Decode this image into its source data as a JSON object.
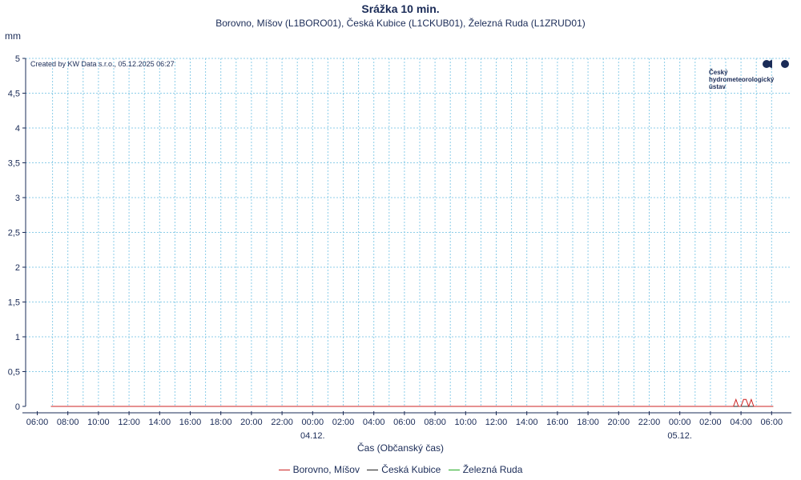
{
  "header": {
    "title": "Srážka 10 min.",
    "subtitle": "Borovno, Míšov (L1BORO01), Česká Kubice (L1CKUB01), Železná Ruda (L1ZRUD01)",
    "unit": "mm",
    "created": "Created by KW Data s.r.o., 05.12.2025 06:27"
  },
  "logo": {
    "line1": "Český",
    "line2": "hydrometeorologický",
    "line3": "ústav",
    "color": "#1a2b57"
  },
  "chart_data": {
    "type": "line",
    "title": "Srážka 10 min.",
    "xlabel": "Čas (Občanský čas)",
    "ylabel": "mm",
    "x_range_hours": [
      0,
      48.2
    ],
    "ylim": [
      0,
      5
    ],
    "y_ticks": [
      "0",
      "0,5",
      "1",
      "1,5",
      "2",
      "2,5",
      "3",
      "3,5",
      "4",
      "4,5",
      "5"
    ],
    "x_ticks": [
      "06:00",
      "08:00",
      "10:00",
      "12:00",
      "14:00",
      "16:00",
      "18:00",
      "20:00",
      "22:00",
      "00:00",
      "02:00",
      "04:00",
      "06:00",
      "08:00",
      "10:00",
      "12:00",
      "14:00",
      "16:00",
      "18:00",
      "20:00",
      "22:00",
      "00:00",
      "02:00",
      "04:00",
      "06:00"
    ],
    "date_labels": [
      {
        "label": "04.12.",
        "tick_index": 9
      },
      {
        "label": "05.12.",
        "tick_index": 21
      }
    ],
    "grid": true,
    "legend_position": "bottom",
    "series": [
      {
        "name": "Borovno, Míšov",
        "color": "#cc2222",
        "points": [
          [
            0.9,
            0
          ],
          [
            45.5,
            0
          ],
          [
            45.67,
            0.1
          ],
          [
            45.83,
            0
          ],
          [
            46.0,
            0
          ],
          [
            46.17,
            0.1
          ],
          [
            46.33,
            0.1
          ],
          [
            46.5,
            0
          ],
          [
            46.67,
            0.1
          ],
          [
            46.83,
            0
          ],
          [
            48.1,
            0
          ]
        ]
      },
      {
        "name": "Česká Kubice",
        "color": "#222222",
        "points": [
          [
            0.9,
            0
          ],
          [
            48.1,
            0
          ]
        ]
      },
      {
        "name": "Železná Ruda",
        "color": "#22aa22",
        "points": [
          [
            0.9,
            0
          ],
          [
            48.1,
            0
          ]
        ]
      }
    ]
  },
  "legend": [
    {
      "label": "Borovno, Míšov",
      "color": "#cc2222"
    },
    {
      "label": "Česká Kubice",
      "color": "#222222"
    },
    {
      "label": "Železná Ruda",
      "color": "#22aa22"
    }
  ]
}
